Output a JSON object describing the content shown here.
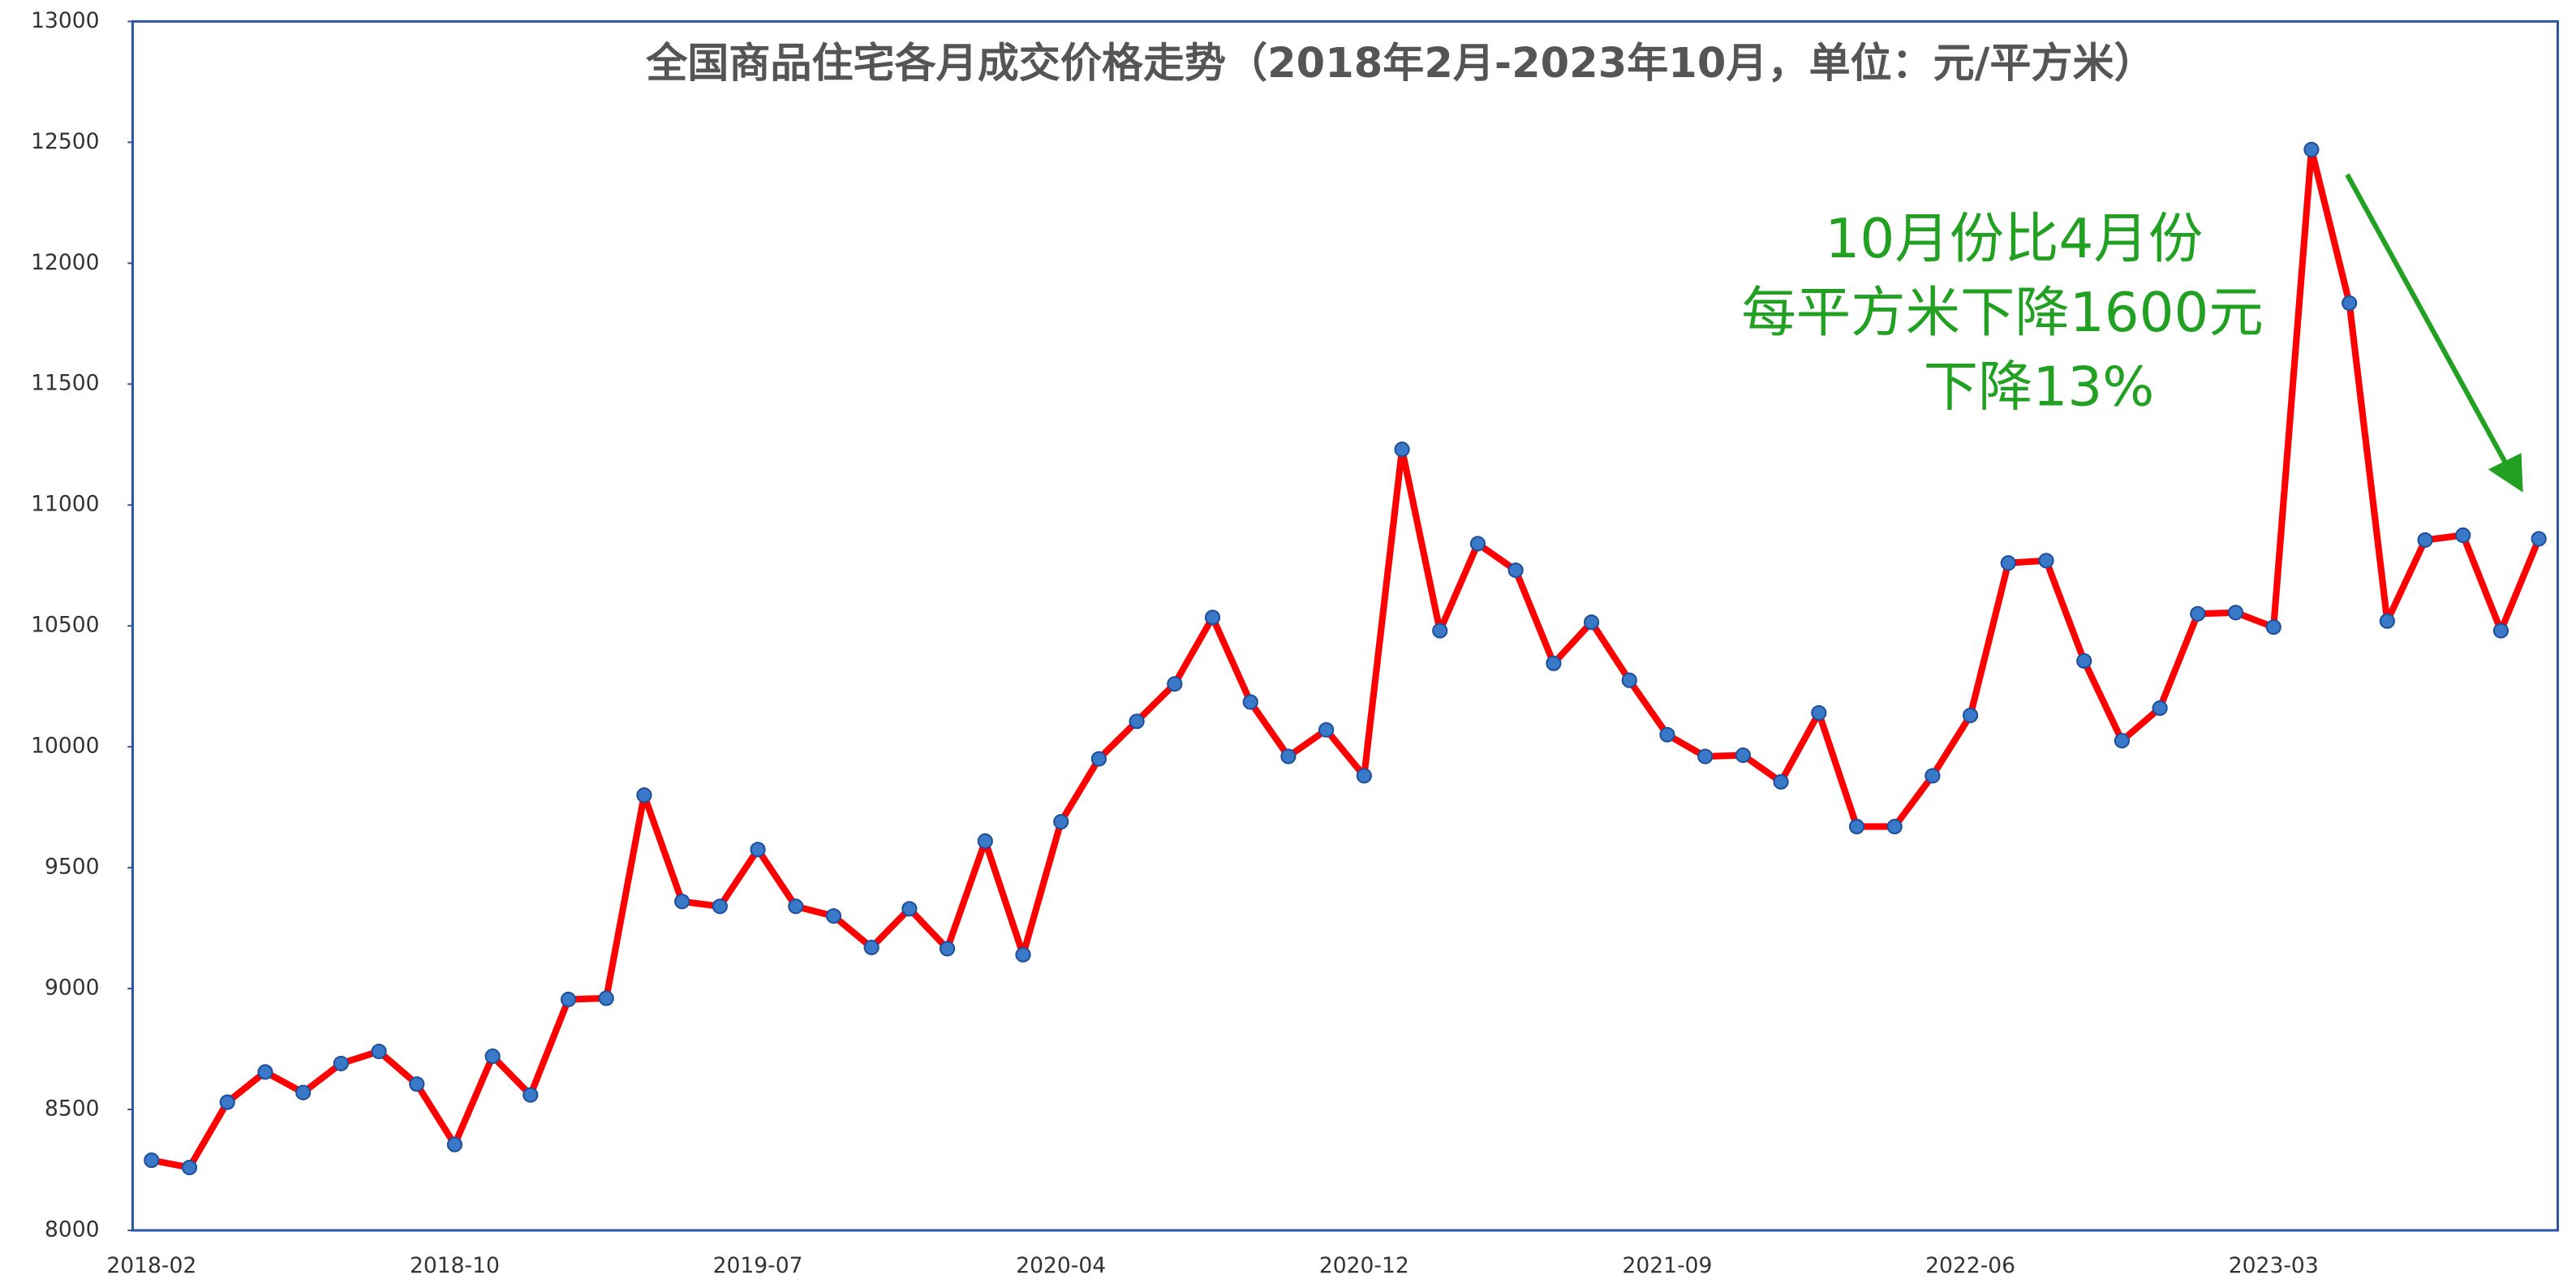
{
  "chart_data": {
    "type": "line",
    "title": "全国商品住宅各月成交价格走势（2018年2月-2023年10月，单位：元/平方米）",
    "annotations": [
      "10月份比4月份",
      "每平方米下降1600元",
      "下降13%"
    ],
    "categories": [
      "2018-02",
      null,
      null,
      null,
      null,
      null,
      null,
      null,
      "2018-10",
      null,
      null,
      null,
      null,
      null,
      null,
      null,
      "2019-07",
      null,
      null,
      null,
      null,
      null,
      null,
      null,
      "2020-04",
      null,
      null,
      null,
      null,
      null,
      null,
      null,
      "2020-12",
      null,
      null,
      null,
      null,
      null,
      null,
      null,
      "2021-09",
      null,
      null,
      null,
      null,
      null,
      null,
      null,
      "2022-06",
      null,
      null,
      null,
      null,
      null,
      null,
      null,
      "2023-03",
      null,
      null,
      null,
      null,
      null,
      null,
      null
    ],
    "values": [
      8290,
      8260,
      8530,
      8655,
      8570,
      8690,
      8740,
      8605,
      8355,
      8720,
      8560,
      8955,
      8960,
      9800,
      9360,
      9340,
      9575,
      9340,
      9300,
      9170,
      9330,
      9165,
      9610,
      9140,
      9690,
      9950,
      10105,
      10260,
      10535,
      10185,
      9960,
      10070,
      9880,
      11230,
      10480,
      10840,
      10730,
      10345,
      10515,
      10275,
      10050,
      9960,
      9965,
      9855,
      10140,
      9670,
      9670,
      9880,
      10130,
      10760,
      10770,
      10355,
      10025,
      10160,
      10550,
      10555,
      10495,
      12470,
      11835,
      10520,
      10855,
      10875,
      10480,
      10860
    ],
    "color": "#ff0000",
    "marker_color": "#3a78c8",
    "annotation_color": "#22a022",
    "ylim": [
      8000,
      13000
    ],
    "yticks": [
      8000,
      8500,
      9000,
      9500,
      10000,
      10500,
      11000,
      11500,
      12000,
      12500,
      13000
    ],
    "grid": false
  }
}
